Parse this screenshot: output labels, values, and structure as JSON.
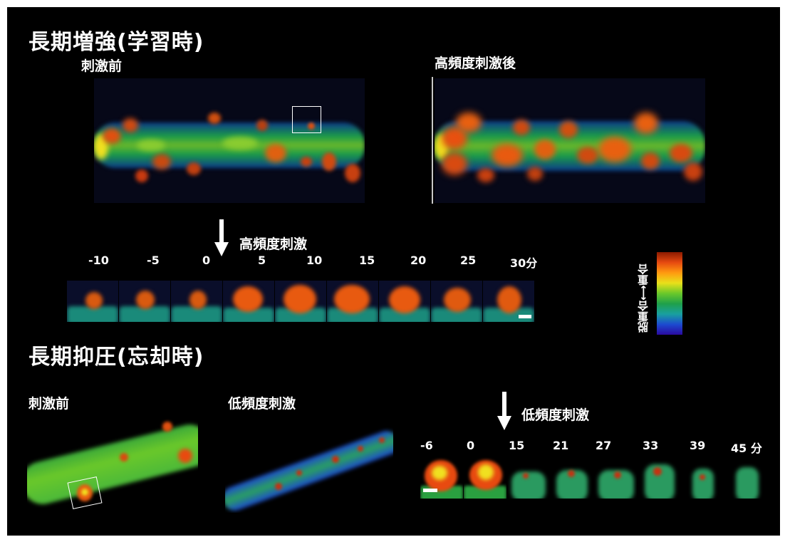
{
  "ltp": {
    "title": "長期増強(学習時)",
    "before_label": "刺激前",
    "after_label": "高頻度刺激後",
    "stim_label": "高頻度刺激",
    "times": [
      "-10",
      "-5",
      "0",
      "5",
      "10",
      "15",
      "20",
      "25",
      "30分"
    ]
  },
  "colorbar": {
    "label": "脱重合⟷重合",
    "colors": [
      "#8b1a00",
      "#e64a10",
      "#ff9a10",
      "#e8e01a",
      "#6ac82a",
      "#1fa04a",
      "#19a0a0",
      "#1c4ad0",
      "#2a0aa0"
    ]
  },
  "ltd": {
    "title": "長期抑圧(忘却時)",
    "before_label": "刺激前",
    "low_label": "低頻度刺激",
    "stim_label": "低頻度刺激",
    "times": [
      "-6",
      "0",
      "15",
      "21",
      "27",
      "33",
      "39",
      "45 分"
    ]
  }
}
